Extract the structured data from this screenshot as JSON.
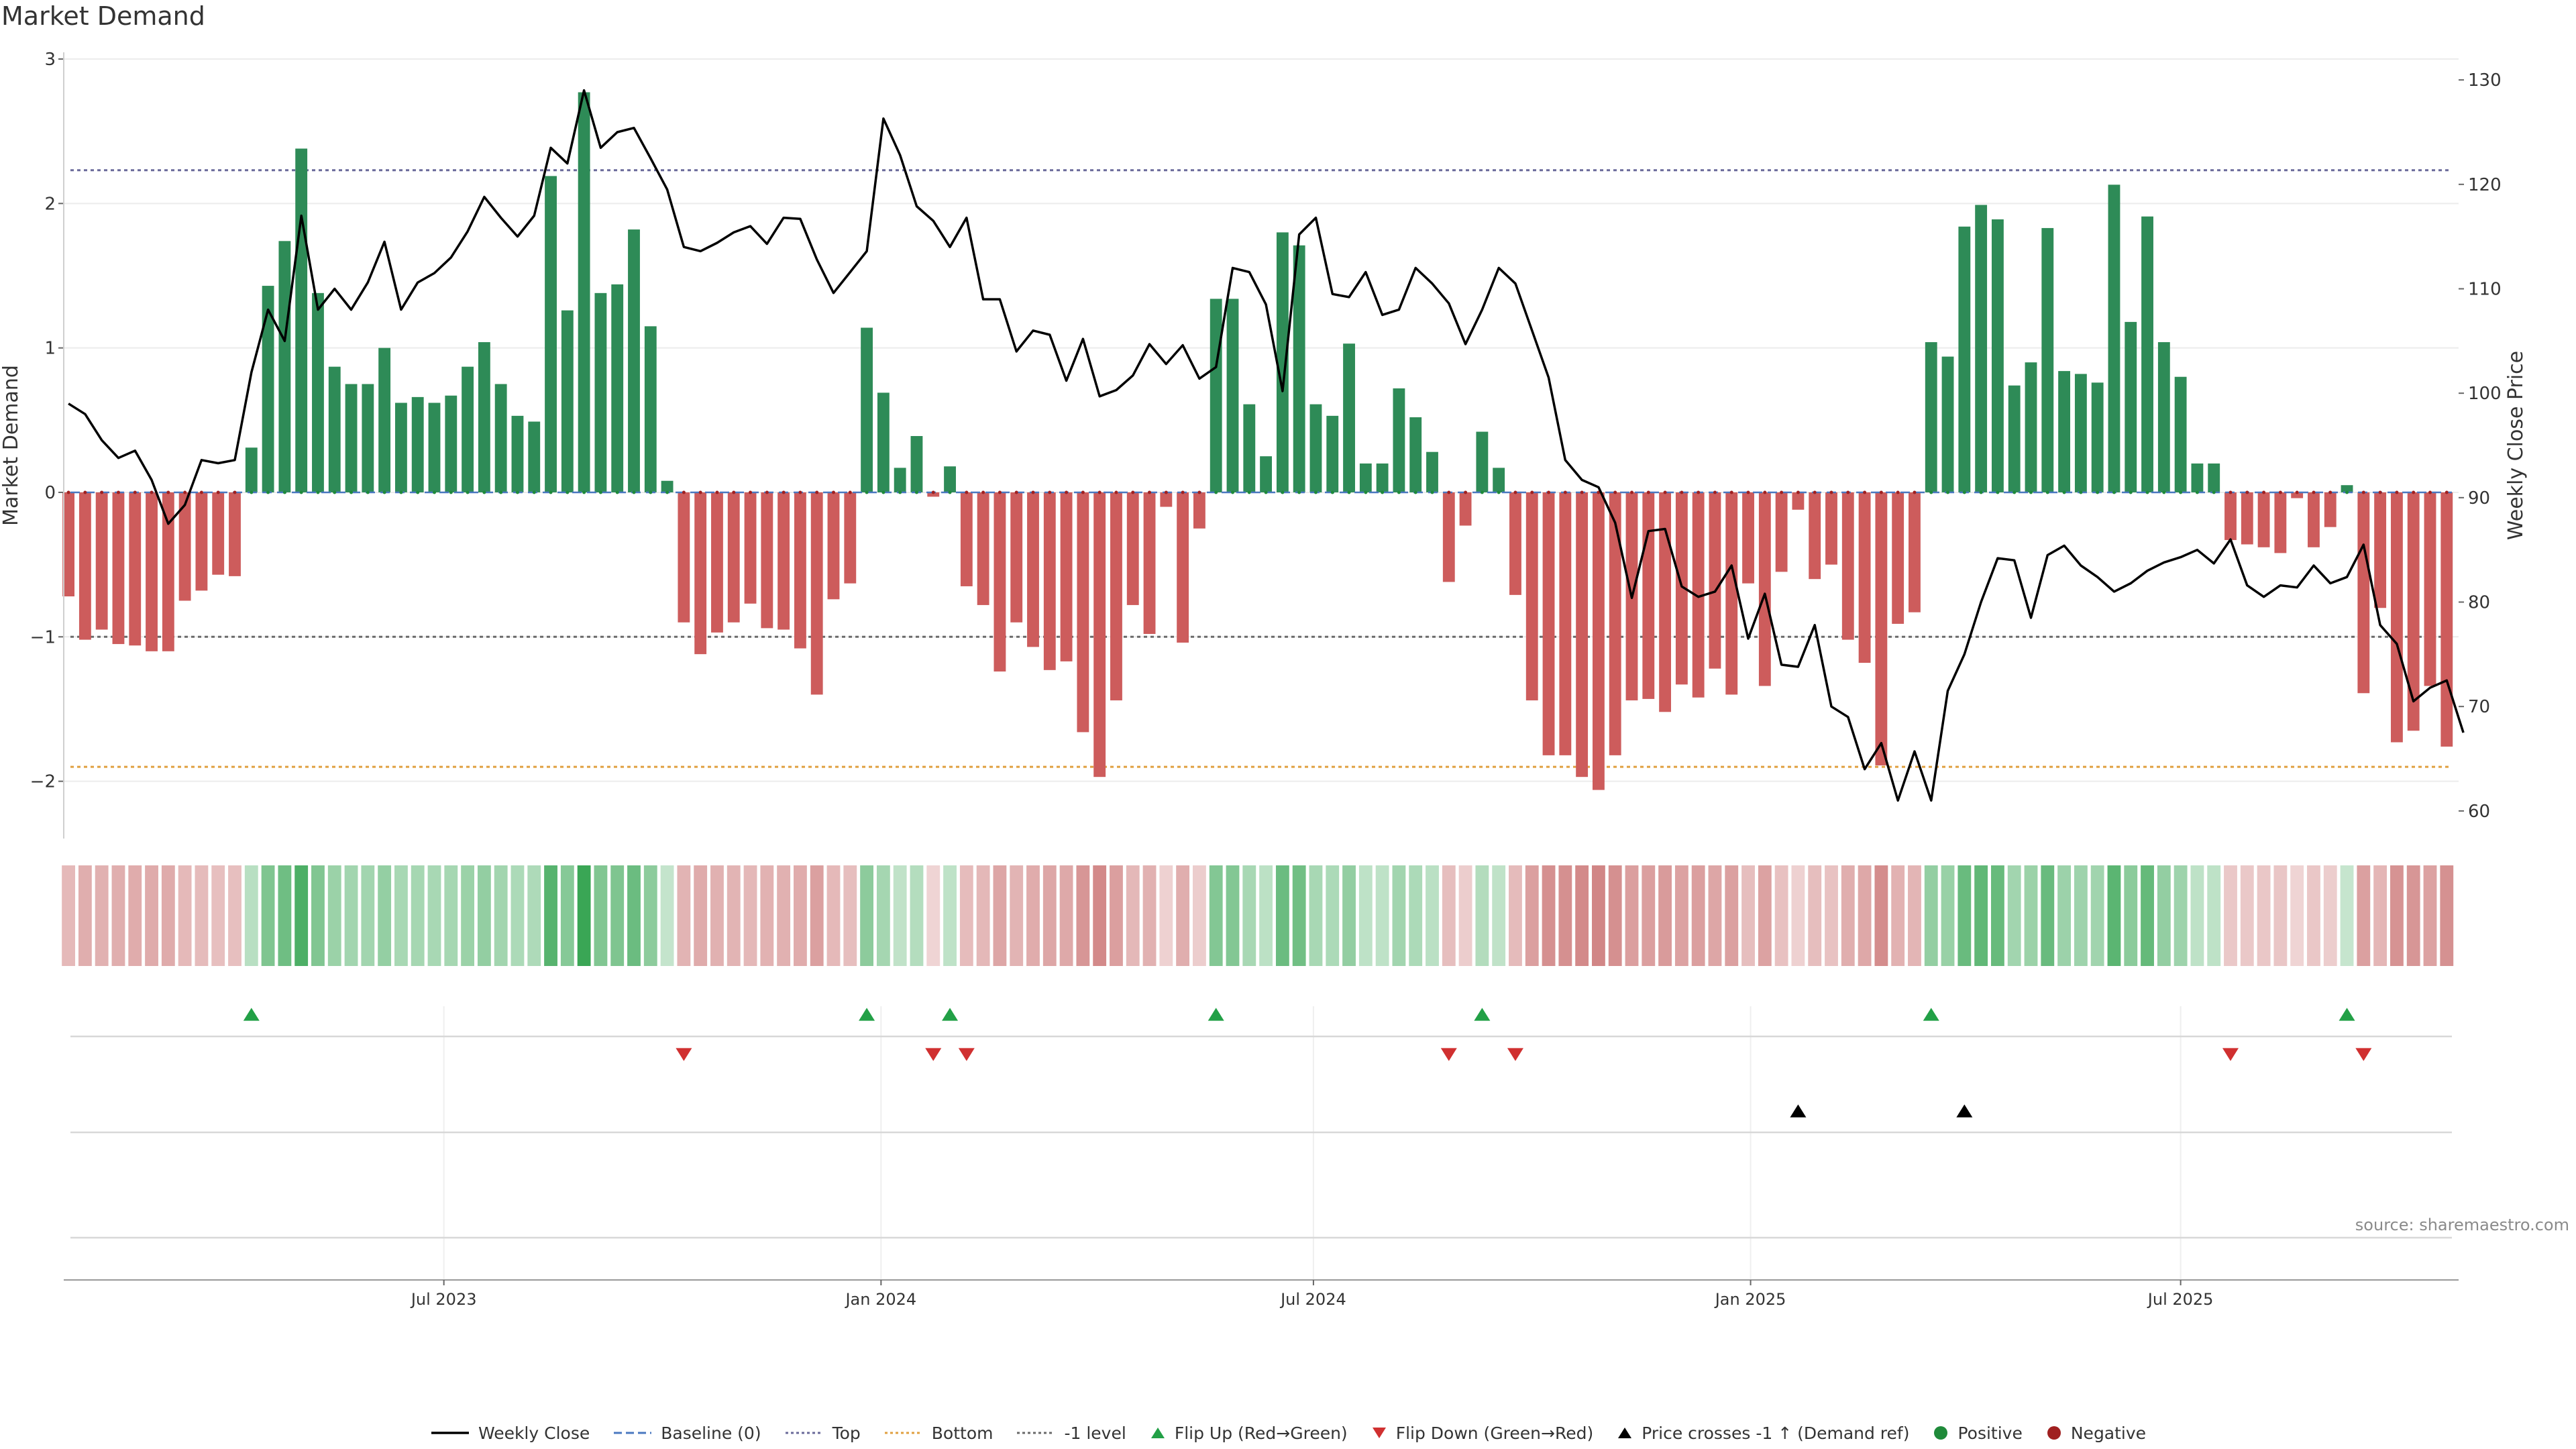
{
  "page": {
    "title": "Market Demand",
    "source": "source: sharemaestro.com"
  },
  "colors": {
    "positive_bar": "#2e8b57",
    "negative_bar": "#cd5c5c",
    "price_line": "#000000",
    "top_line": "#6a6a9a",
    "bottom_line": "#e0a040",
    "minus1_line": "#6a6a6a",
    "flip_up": "#22a046",
    "flip_down": "#d03030",
    "cross_marker": "#000000",
    "positive_dot": "#1f8a3a",
    "negative_dot": "#a02020"
  },
  "legend": [
    {
      "label": "Weekly Close",
      "kind": "line",
      "color": "#000000"
    },
    {
      "label": "Baseline (0)",
      "kind": "dash",
      "color": "#4a78c0"
    },
    {
      "label": "Top",
      "kind": "dot",
      "color": "#6a6a9a"
    },
    {
      "label": "Bottom",
      "kind": "dot",
      "color": "#e0a040"
    },
    {
      "label": "-1 level",
      "kind": "dot",
      "color": "#6a6a6a"
    },
    {
      "label": "Flip Up (Red→Green)",
      "kind": "tri-up",
      "color": "#22a046"
    },
    {
      "label": "Flip Down (Green→Red)",
      "kind": "tri-down",
      "color": "#d03030"
    },
    {
      "label": "Price crosses -1 ↑ (Demand ref)",
      "kind": "tri-up",
      "color": "#000000"
    },
    {
      "label": "Positive",
      "kind": "circle",
      "color": "#1f8a3a"
    },
    {
      "label": "Negative",
      "kind": "circle",
      "color": "#a02020"
    }
  ],
  "chart_data": {
    "type": "bar",
    "ylabel": "Market Demand",
    "y2label": "Weekly Close Price",
    "ylim": [
      -2.35,
      3.0
    ],
    "y2lim": [
      58,
      132
    ],
    "yticks": [
      {
        "v": 3,
        "label": "3"
      },
      {
        "v": 2,
        "label": "2"
      },
      {
        "v": 1,
        "label": "1"
      },
      {
        "v": 0,
        "label": "0"
      },
      {
        "v": -1,
        "label": "−1"
      },
      {
        "v": -2,
        "label": "−2"
      }
    ],
    "y2ticks": [
      60,
      70,
      80,
      90,
      100,
      110,
      120,
      130
    ],
    "x_range": [
      "2023-01-22",
      "2025-10-26"
    ],
    "first_week": "2023-01-24",
    "xticks": [
      {
        "date": "2023-07-01",
        "label": "Jul 2023"
      },
      {
        "date": "2024-01-01",
        "label": "Jan 2024"
      },
      {
        "date": "2024-07-01",
        "label": "Jul 2024"
      },
      {
        "date": "2025-01-01",
        "label": "Jan 2025"
      },
      {
        "date": "2025-07-01",
        "label": "Jul 2025"
      }
    ],
    "reference_lines": {
      "top": 2.23,
      "bottom": -1.9,
      "minus1": -1.0
    },
    "demand": [
      -0.72,
      -1.02,
      -0.95,
      -1.05,
      -1.06,
      -1.1,
      -1.1,
      -0.75,
      -0.68,
      -0.57,
      -0.58,
      0.31,
      1.43,
      1.74,
      2.38,
      1.38,
      0.87,
      0.75,
      0.75,
      1.0,
      0.62,
      0.66,
      0.62,
      0.67,
      0.87,
      1.04,
      0.75,
      0.53,
      0.49,
      2.19,
      1.26,
      2.77,
      1.38,
      1.44,
      1.82,
      1.15,
      0.08,
      -0.9,
      -1.12,
      -0.97,
      -0.9,
      -0.77,
      -0.94,
      -0.95,
      -1.08,
      -1.4,
      -0.74,
      -0.63,
      1.14,
      0.69,
      0.17,
      0.39,
      -0.03,
      0.18,
      -0.65,
      -0.78,
      -1.24,
      -0.9,
      -1.07,
      -1.23,
      -1.17,
      -1.66,
      -1.97,
      -1.44,
      -0.78,
      -0.98,
      -0.1,
      -1.04,
      -0.25,
      1.34,
      1.34,
      0.61,
      0.25,
      1.8,
      1.71,
      0.61,
      0.53,
      1.03,
      0.2,
      0.2,
      0.72,
      0.52,
      0.28,
      -0.62,
      -0.23,
      0.42,
      0.17,
      -0.71,
      -1.44,
      -1.82,
      -1.82,
      -1.97,
      -2.06,
      -1.82,
      -1.44,
      -1.43,
      -1.52,
      -1.33,
      -1.42,
      -1.22,
      -1.4,
      -0.63,
      -1.34,
      -0.55,
      -0.12,
      -0.6,
      -0.5,
      -1.02,
      -1.18,
      -1.89,
      -0.91,
      -0.83,
      1.04,
      0.94,
      1.84,
      1.99,
      1.89,
      0.74,
      0.9,
      1.83,
      0.84,
      0.82,
      0.76,
      2.13,
      1.18,
      1.91,
      1.04,
      0.8,
      0.2,
      0.2,
      -0.33,
      -0.36,
      -0.38,
      -0.42,
      -0.04,
      -0.38,
      -0.24,
      0.05,
      -1.39,
      -0.8,
      -1.73,
      -1.65,
      -1.34,
      -1.76
    ],
    "price": [
      99.0,
      98.0,
      95.5,
      93.8,
      94.5,
      91.7,
      87.5,
      89.3,
      93.6,
      93.3,
      93.6,
      102.0,
      108.0,
      105.0,
      117.0,
      108.0,
      110.0,
      108.0,
      110.6,
      114.5,
      108.0,
      110.6,
      111.5,
      113.0,
      115.5,
      118.8,
      116.8,
      115.0,
      117.0,
      123.5,
      122.0,
      129.0,
      123.5,
      125.0,
      125.4,
      122.5,
      119.5,
      114.0,
      113.6,
      114.4,
      115.4,
      116.0,
      114.3,
      116.8,
      116.7,
      112.8,
      109.6,
      111.6,
      113.6,
      126.3,
      122.8,
      117.9,
      116.5,
      114.0,
      116.8,
      109.0,
      109.0,
      104.0,
      106.0,
      105.6,
      101.2,
      105.2,
      99.7,
      100.3,
      101.7,
      104.7,
      102.8,
      104.6,
      101.4,
      102.5,
      112.0,
      111.6,
      108.5,
      100.2,
      115.2,
      116.8,
      109.5,
      109.2,
      111.6,
      107.5,
      108.0,
      112.0,
      110.5,
      108.6,
      104.7,
      108.0,
      112.0,
      110.5,
      106.0,
      101.5,
      93.6,
      91.7,
      91.0,
      87.6,
      80.4,
      86.8,
      87.0,
      81.5,
      80.5,
      81.0,
      83.5,
      76.5,
      80.8,
      74.0,
      73.8,
      77.8,
      70.0,
      69.0,
      64.0,
      66.5,
      61.0,
      65.7,
      61.0,
      71.5,
      75.0,
      80.0,
      84.2,
      84.0,
      78.5,
      84.5,
      85.4,
      83.5,
      82.4,
      81.0,
      81.8,
      83.0,
      83.8,
      84.3,
      85.0,
      83.7,
      86.0,
      81.6,
      80.5,
      81.6,
      81.4,
      83.5,
      81.8,
      82.4,
      85.5,
      77.8,
      76.0,
      70.5,
      71.8,
      72.5,
      67.5
    ],
    "flip_up_weeks": [
      11,
      48,
      53,
      69,
      85,
      112,
      137
    ],
    "flip_down_weeks": [
      37,
      52,
      54,
      83,
      87,
      130,
      138
    ],
    "cross_weeks": [
      104,
      114
    ]
  }
}
